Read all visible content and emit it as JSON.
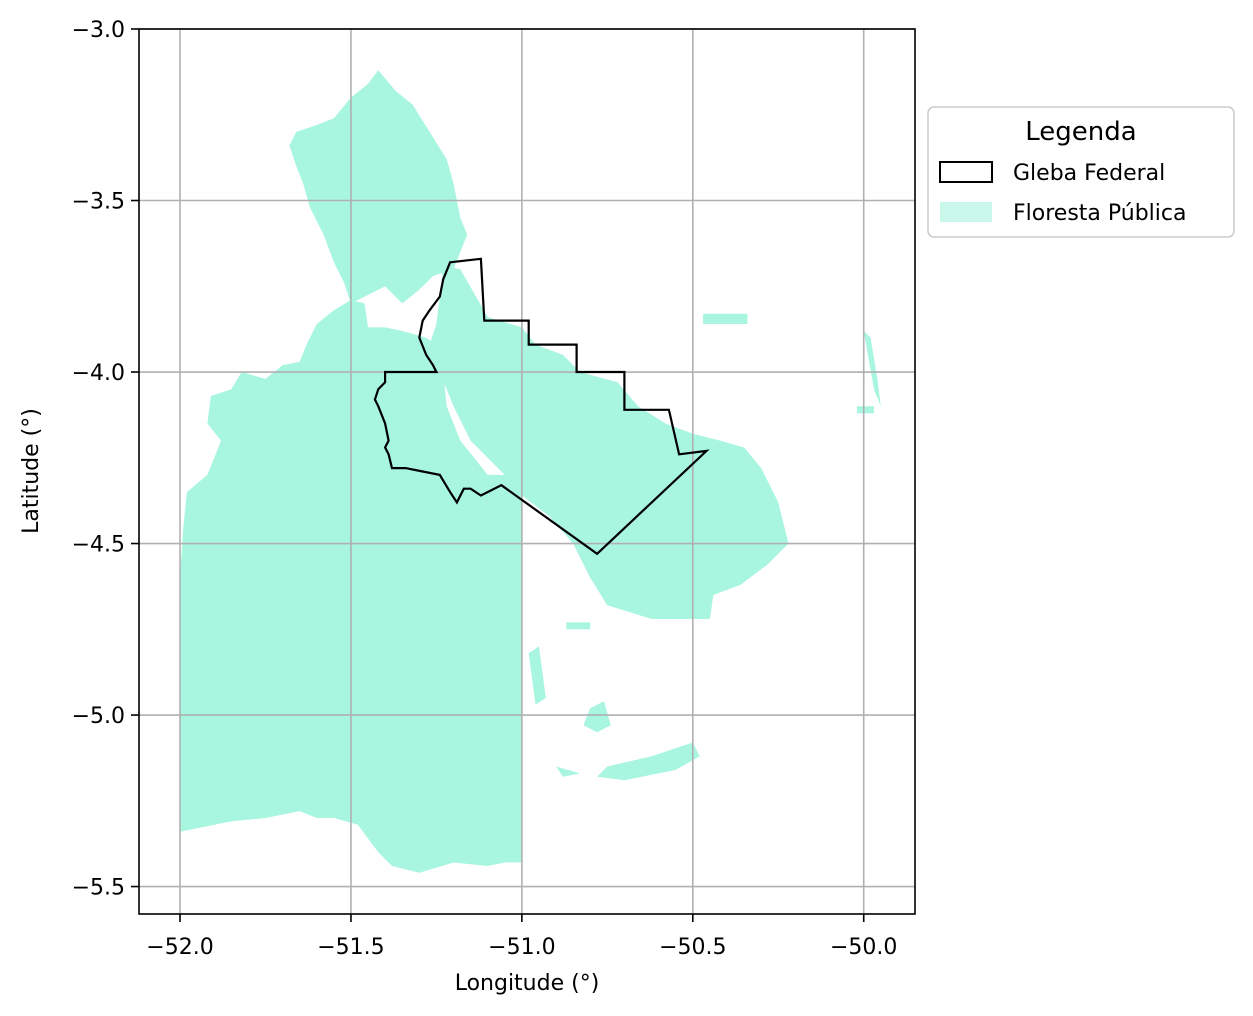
{
  "axes": {
    "xlabel": "Longitude (°)",
    "ylabel": "Latitude (°)",
    "xlim": [
      -52.12,
      -49.85
    ],
    "ylim": [
      -5.58,
      -3.0
    ],
    "xticks": [
      -52.0,
      -51.5,
      -51.0,
      -50.5,
      -50.0
    ],
    "yticks": [
      -3.0,
      -3.5,
      -4.0,
      -4.5,
      -5.0,
      -5.5
    ],
    "xtick_labels": [
      "−52.0",
      "−51.5",
      "−51.0",
      "−50.5",
      "−50.0"
    ],
    "ytick_labels": [
      "−3.0",
      "−3.5",
      "−4.0",
      "−4.5",
      "−5.0",
      "−5.5"
    ],
    "grid": true
  },
  "legend": {
    "title": "Legenda",
    "items": [
      {
        "label": "Gleba Federal",
        "kind": "outline",
        "color": "#000000"
      },
      {
        "label": "Floresta Pública",
        "kind": "fill",
        "color": "#a8f5e0"
      }
    ],
    "placement": "outside-right-top"
  },
  "layers": {
    "floresta_color": "#a8f5e0",
    "gleba_color": "#000000",
    "grid_color": "#b0b0b0",
    "floresta_main": [
      [
        -52.0,
        -5.34
      ],
      [
        -52.0,
        -4.6
      ],
      [
        -51.99,
        -4.45
      ],
      [
        -51.98,
        -4.35
      ],
      [
        -51.92,
        -4.3
      ],
      [
        -51.88,
        -4.2
      ],
      [
        -51.92,
        -4.15
      ],
      [
        -51.91,
        -4.07
      ],
      [
        -51.85,
        -4.05
      ],
      [
        -51.82,
        -4.0
      ],
      [
        -51.75,
        -4.02
      ],
      [
        -51.7,
        -3.98
      ],
      [
        -51.65,
        -3.97
      ],
      [
        -51.63,
        -3.92
      ],
      [
        -51.6,
        -3.86
      ],
      [
        -51.55,
        -3.82
      ],
      [
        -51.5,
        -3.79
      ],
      [
        -51.46,
        -3.8
      ],
      [
        -51.45,
        -3.87
      ],
      [
        -51.4,
        -3.87
      ],
      [
        -51.35,
        -3.88
      ],
      [
        -51.28,
        -3.9
      ],
      [
        -51.25,
        -3.92
      ],
      [
        -51.23,
        -4.0
      ],
      [
        -51.22,
        -4.1
      ],
      [
        -51.18,
        -4.2
      ],
      [
        -51.1,
        -4.3
      ],
      [
        -51.0,
        -4.3
      ],
      [
        -51.0,
        -4.5
      ],
      [
        -51.0,
        -5.43
      ],
      [
        -51.05,
        -5.43
      ],
      [
        -51.1,
        -5.44
      ],
      [
        -51.2,
        -5.43
      ],
      [
        -51.3,
        -5.46
      ],
      [
        -51.38,
        -5.44
      ],
      [
        -51.42,
        -5.4
      ],
      [
        -51.48,
        -5.32
      ],
      [
        -51.55,
        -5.3
      ],
      [
        -51.6,
        -5.3
      ],
      [
        -51.65,
        -5.28
      ],
      [
        -51.75,
        -5.3
      ],
      [
        -51.85,
        -5.31
      ],
      [
        -51.95,
        -5.33
      ],
      [
        -52.0,
        -5.34
      ]
    ],
    "floresta_north": [
      [
        -51.68,
        -3.34
      ],
      [
        -51.66,
        -3.3
      ],
      [
        -51.6,
        -3.28
      ],
      [
        -51.55,
        -3.26
      ],
      [
        -51.5,
        -3.2
      ],
      [
        -51.45,
        -3.16
      ],
      [
        -51.42,
        -3.12
      ],
      [
        -51.37,
        -3.18
      ],
      [
        -51.32,
        -3.22
      ],
      [
        -51.27,
        -3.3
      ],
      [
        -51.22,
        -3.38
      ],
      [
        -51.2,
        -3.45
      ],
      [
        -51.18,
        -3.55
      ],
      [
        -51.16,
        -3.6
      ],
      [
        -51.2,
        -3.7
      ],
      [
        -51.26,
        -3.72
      ],
      [
        -51.3,
        -3.76
      ],
      [
        -51.35,
        -3.8
      ],
      [
        -51.4,
        -3.75
      ],
      [
        -51.46,
        -3.78
      ],
      [
        -51.5,
        -3.8
      ],
      [
        -51.52,
        -3.74
      ],
      [
        -51.55,
        -3.68
      ],
      [
        -51.58,
        -3.6
      ],
      [
        -51.62,
        -3.52
      ],
      [
        -51.64,
        -3.45
      ],
      [
        -51.66,
        -3.4
      ],
      [
        -51.68,
        -3.34
      ]
    ],
    "floresta_central": [
      [
        -51.23,
        -3.69
      ],
      [
        -51.18,
        -3.7
      ],
      [
        -51.1,
        -3.84
      ],
      [
        -51.0,
        -3.87
      ],
      [
        -50.96,
        -3.92
      ],
      [
        -50.88,
        -3.95
      ],
      [
        -50.83,
        -4.0
      ],
      [
        -50.72,
        -4.03
      ],
      [
        -50.66,
        -4.1
      ],
      [
        -50.58,
        -4.15
      ],
      [
        -50.5,
        -4.18
      ],
      [
        -50.42,
        -4.2
      ],
      [
        -50.35,
        -4.22
      ],
      [
        -50.3,
        -4.28
      ],
      [
        -50.25,
        -4.38
      ],
      [
        -50.22,
        -4.5
      ],
      [
        -50.28,
        -4.56
      ],
      [
        -50.36,
        -4.62
      ],
      [
        -50.44,
        -4.65
      ],
      [
        -50.45,
        -4.72
      ],
      [
        -50.55,
        -4.72
      ],
      [
        -50.62,
        -4.72
      ],
      [
        -50.75,
        -4.68
      ],
      [
        -50.8,
        -4.6
      ],
      [
        -50.85,
        -4.5
      ],
      [
        -50.92,
        -4.42
      ],
      [
        -51.0,
        -4.36
      ],
      [
        -51.05,
        -4.3
      ],
      [
        -51.15,
        -4.2
      ],
      [
        -51.2,
        -4.1
      ],
      [
        -51.24,
        -4.0
      ],
      [
        -51.28,
        -3.95
      ],
      [
        -51.25,
        -3.86
      ],
      [
        -51.24,
        -3.78
      ],
      [
        -51.23,
        -3.69
      ]
    ],
    "floresta_south_patches": [
      [
        [
          -50.87,
          -4.73
        ],
        [
          -50.8,
          -4.73
        ],
        [
          -50.8,
          -4.75
        ],
        [
          -50.87,
          -4.75
        ]
      ],
      [
        [
          -50.8,
          -4.98
        ],
        [
          -50.76,
          -4.96
        ],
        [
          -50.74,
          -5.03
        ],
        [
          -50.78,
          -5.05
        ],
        [
          -50.82,
          -5.03
        ]
      ],
      [
        [
          -50.75,
          -5.15
        ],
        [
          -50.62,
          -5.12
        ],
        [
          -50.5,
          -5.08
        ],
        [
          -50.48,
          -5.12
        ],
        [
          -50.55,
          -5.16
        ],
        [
          -50.7,
          -5.19
        ],
        [
          -50.78,
          -5.18
        ]
      ],
      [
        [
          -50.9,
          -5.15
        ],
        [
          -50.83,
          -5.17
        ],
        [
          -50.88,
          -5.18
        ]
      ],
      [
        [
          -50.98,
          -4.82
        ],
        [
          -50.95,
          -4.8
        ],
        [
          -50.93,
          -4.95
        ],
        [
          -50.96,
          -4.97
        ]
      ]
    ],
    "floresta_east_strips": [
      [
        [
          -50.0,
          -3.88
        ],
        [
          -49.98,
          -3.9
        ],
        [
          -49.96,
          -4.02
        ],
        [
          -49.95,
          -4.1
        ],
        [
          -49.97,
          -4.05
        ]
      ],
      [
        [
          -50.47,
          -3.83
        ],
        [
          -50.34,
          -3.83
        ],
        [
          -50.34,
          -3.86
        ],
        [
          -50.47,
          -3.86
        ]
      ],
      [
        [
          -50.02,
          -4.1
        ],
        [
          -49.97,
          -4.1
        ],
        [
          -49.97,
          -4.12
        ],
        [
          -50.02,
          -4.12
        ]
      ]
    ],
    "gleba": [
      [
        -51.21,
        -3.68
      ],
      [
        -51.12,
        -3.67
      ],
      [
        -51.11,
        -3.85
      ],
      [
        -50.98,
        -3.85
      ],
      [
        -50.98,
        -3.92
      ],
      [
        -50.84,
        -3.92
      ],
      [
        -50.84,
        -4.0
      ],
      [
        -50.7,
        -4.0
      ],
      [
        -50.7,
        -4.11
      ],
      [
        -50.57,
        -4.11
      ],
      [
        -50.54,
        -4.24
      ],
      [
        -50.46,
        -4.23
      ],
      [
        -50.78,
        -4.53
      ],
      [
        -51.06,
        -4.33
      ],
      [
        -51.12,
        -4.36
      ],
      [
        -51.15,
        -4.34
      ],
      [
        -51.17,
        -4.34
      ],
      [
        -51.19,
        -4.38
      ],
      [
        -51.21,
        -4.35
      ],
      [
        -51.24,
        -4.3
      ],
      [
        -51.29,
        -4.29
      ],
      [
        -51.34,
        -4.28
      ],
      [
        -51.38,
        -4.28
      ],
      [
        -51.39,
        -4.24
      ],
      [
        -51.4,
        -4.22
      ],
      [
        -51.39,
        -4.2
      ],
      [
        -51.4,
        -4.15
      ],
      [
        -51.42,
        -4.1
      ],
      [
        -51.43,
        -4.08
      ],
      [
        -51.42,
        -4.05
      ],
      [
        -51.4,
        -4.03
      ],
      [
        -51.4,
        -4.0
      ],
      [
        -51.25,
        -4.0
      ],
      [
        -51.26,
        -3.98
      ],
      [
        -51.28,
        -3.95
      ],
      [
        -51.3,
        -3.9
      ],
      [
        -51.29,
        -3.85
      ],
      [
        -51.27,
        -3.82
      ],
      [
        -51.24,
        -3.78
      ],
      [
        -51.23,
        -3.73
      ],
      [
        -51.21,
        -3.68
      ]
    ]
  }
}
